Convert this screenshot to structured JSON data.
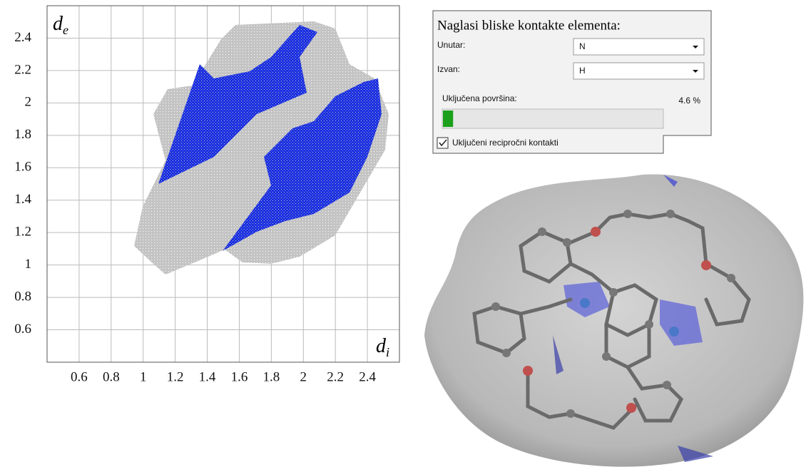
{
  "plot": {
    "xlim": [
      0.4,
      2.6
    ],
    "ylim": [
      0.4,
      2.6
    ],
    "xticks": [
      0.6,
      0.8,
      1.0,
      1.2,
      1.4,
      1.6,
      1.8,
      2.0,
      2.2,
      2.4
    ],
    "yticks": [
      0.6,
      0.8,
      1.0,
      1.2,
      1.4,
      1.6,
      1.8,
      2.0,
      2.2,
      2.4
    ],
    "x_label": {
      "symbol": "d",
      "subscript": "i"
    },
    "y_label": {
      "symbol": "d",
      "subscript": "e"
    }
  },
  "panel": {
    "title": "Naglasi bliske kontakte elementa:",
    "inside_label": "Unutar:",
    "inside_value": "N",
    "outside_label": "Izvan:",
    "outside_value": "H",
    "surface_label": "Uključena površina:",
    "surface_percent": 4.6,
    "surface_percent_label": "4.6 %",
    "reciprocal_label": "Uključeni recipročni kontakti"
  }
}
